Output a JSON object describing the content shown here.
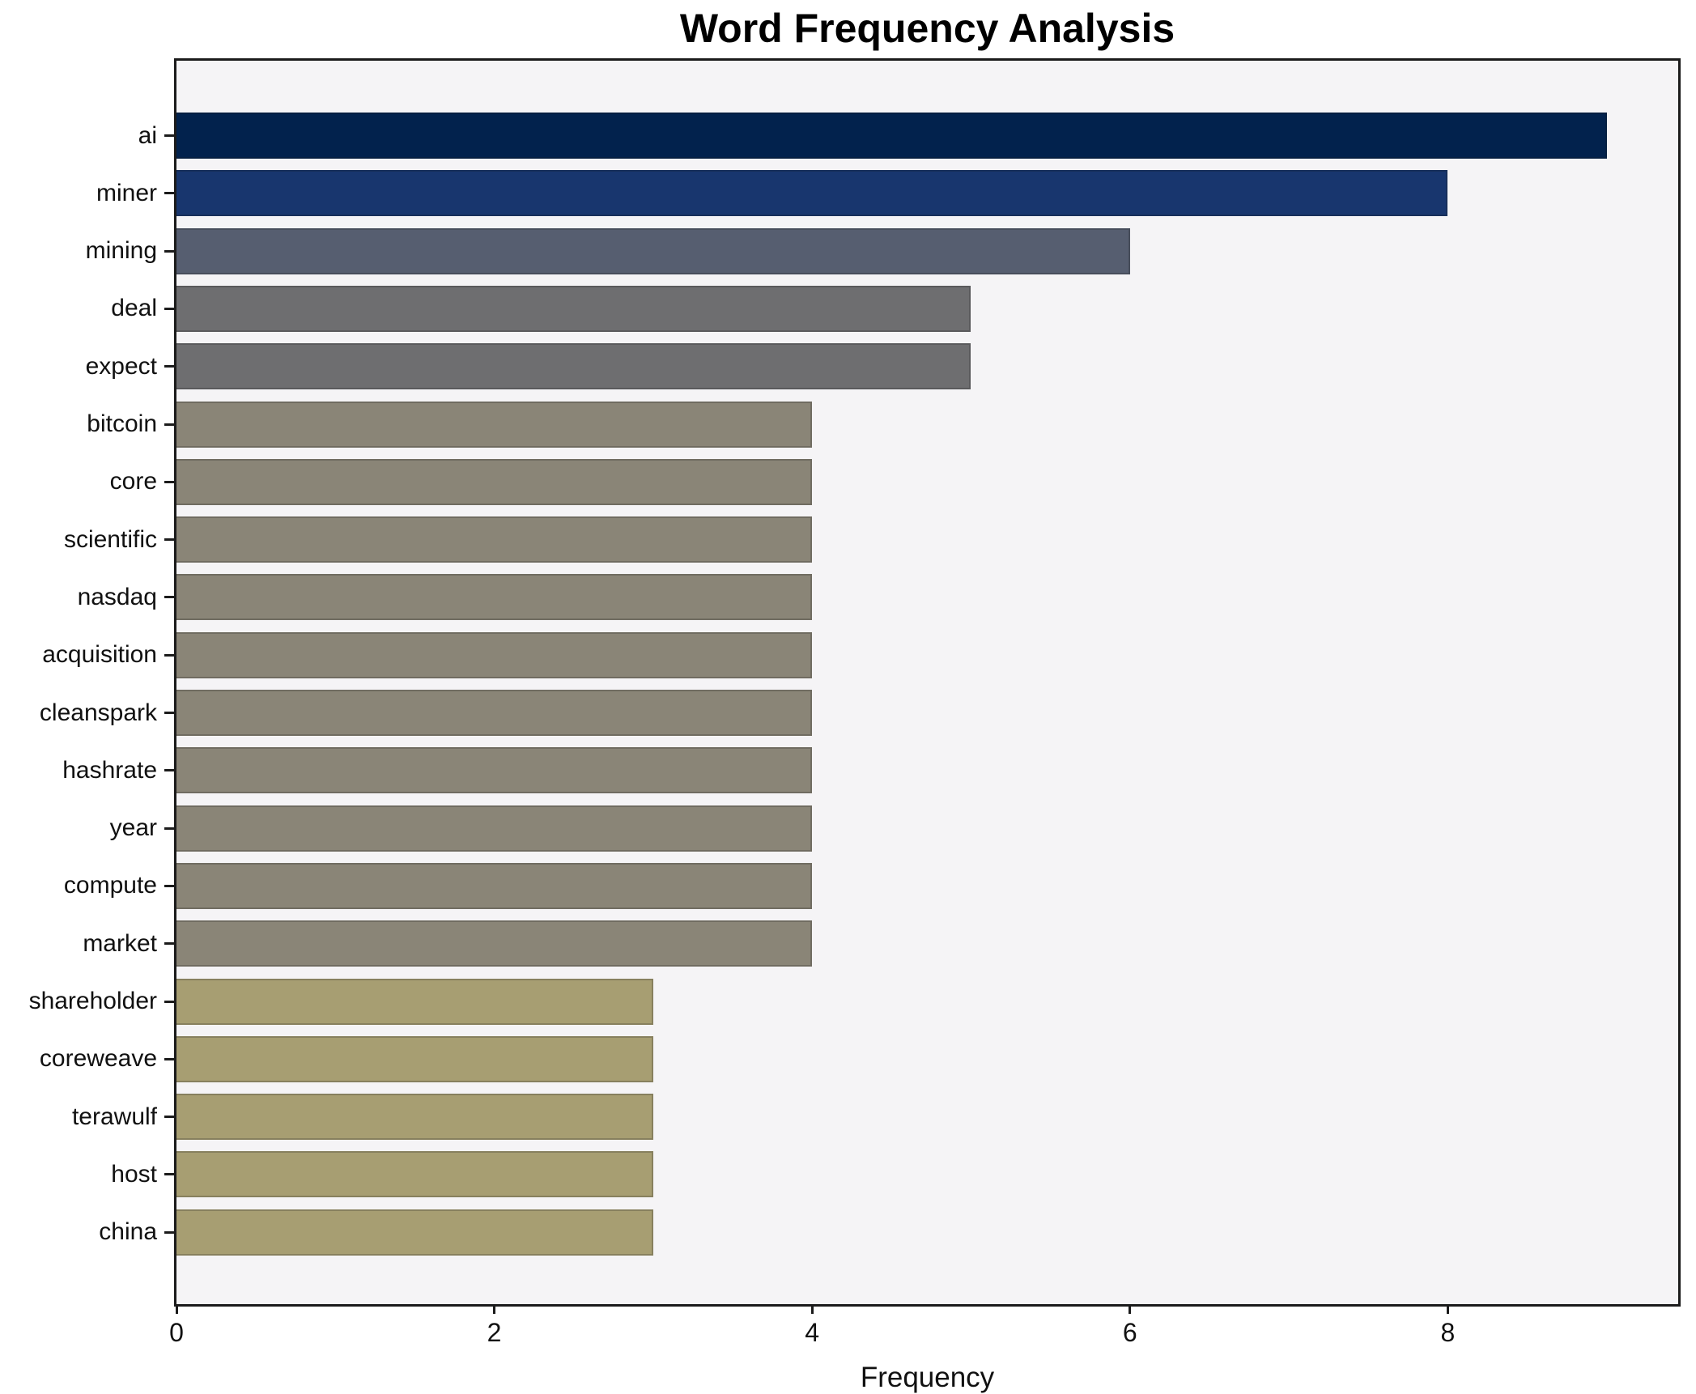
{
  "title": "Word Frequency Analysis",
  "chart_data": {
    "type": "bar",
    "orientation": "horizontal",
    "title": "Word Frequency Analysis",
    "xlabel": "Frequency",
    "ylabel": "",
    "categories": [
      "ai",
      "miner",
      "mining",
      "deal",
      "expect",
      "bitcoin",
      "core",
      "scientific",
      "nasdaq",
      "acquisition",
      "cleanspark",
      "hashrate",
      "year",
      "compute",
      "market",
      "shareholder",
      "coreweave",
      "terawulf",
      "host",
      "china"
    ],
    "values": [
      9,
      8,
      6,
      5,
      5,
      4,
      4,
      4,
      4,
      4,
      4,
      4,
      4,
      4,
      4,
      3,
      3,
      3,
      3,
      3
    ],
    "bar_colors": [
      "#02224d",
      "#18366e",
      "#565e70",
      "#6e6e70",
      "#6e6e70",
      "#8a8577",
      "#8a8577",
      "#8a8577",
      "#8a8577",
      "#8a8577",
      "#8a8577",
      "#8a8577",
      "#8a8577",
      "#8a8577",
      "#8a8577",
      "#a79e72",
      "#a79e72",
      "#a79e72",
      "#a79e72",
      "#a79e72"
    ],
    "xlim": [
      0,
      9.45
    ],
    "x_ticks": [
      0,
      2,
      4,
      6,
      8
    ],
    "grid": false,
    "legend": "none",
    "plot_bg_color": "#f5f4f6",
    "figure_bg_color": "#ffffff",
    "spine_color": "#1b1b1b"
  }
}
